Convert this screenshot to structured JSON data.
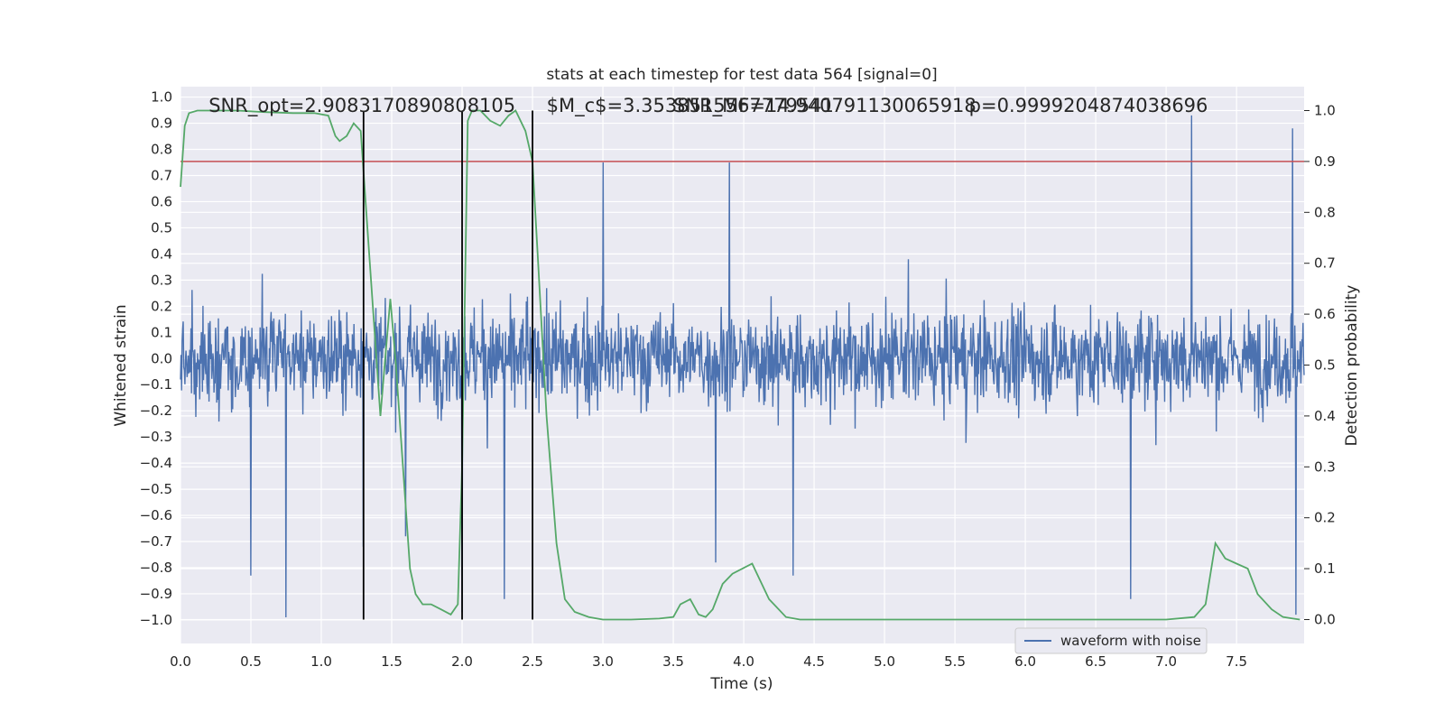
{
  "chart_data": {
    "type": "line",
    "title": "stats at each timestep for test data 564 [signal=0]",
    "xlabel": "Time (s)",
    "ylabel": "Whitened strain",
    "y2label": "Detection probability",
    "xlim": [
      0.0,
      7.98
    ],
    "ylim": [
      -1.09,
      1.04
    ],
    "y2lim": [
      -0.047,
      1.047
    ],
    "xticks": [
      "0.0",
      "0.5",
      "1.0",
      "1.5",
      "2.0",
      "2.5",
      "3.0",
      "3.5",
      "4.0",
      "4.5",
      "5.0",
      "5.5",
      "6.0",
      "6.5",
      "7.0",
      "7.5"
    ],
    "yticks": [
      "1.0",
      "0.9",
      "0.8",
      "0.7",
      "0.6",
      "0.5",
      "0.4",
      "0.3",
      "0.2",
      "0.1",
      "0.0",
      "−0.1",
      "−0.2",
      "−0.3",
      "−0.4",
      "−0.5",
      "−0.6",
      "−0.7",
      "−0.8",
      "−0.9",
      "−1.0"
    ],
    "y2ticks": [
      "1.0",
      "0.9",
      "0.8",
      "0.7",
      "0.6",
      "0.5",
      "0.4",
      "0.3",
      "0.2",
      "0.1",
      "0.0"
    ],
    "grid": true,
    "legend": {
      "placement": "lower-right",
      "entries": [
        "waveform with noise"
      ]
    },
    "annotations": [
      "SNR_opt=2.9083170890808105",
      "$M_c$=3.3538515567779541",
      "SNR_MF=14.940791130065918",
      "p=0.9999204874038696"
    ],
    "threshold": 0.9,
    "vlines": [
      1.3,
      2.0,
      2.5
    ],
    "series": [
      {
        "name": "waveform with noise",
        "waveform": {
          "n_samples": 2048,
          "typical_envelope": 0.33,
          "peaks": [
            {
              "x": 0.75,
              "y": -0.99
            },
            {
              "x": 0.5,
              "y": -0.83
            },
            {
              "x": 1.3,
              "y": 0.8
            },
            {
              "x": 1.3,
              "y": -0.72
            },
            {
              "x": 1.6,
              "y": -0.68
            },
            {
              "x": 2.0,
              "y": -0.97
            },
            {
              "x": 2.3,
              "y": -0.92
            },
            {
              "x": 3.0,
              "y": 0.75
            },
            {
              "x": 3.9,
              "y": 0.75
            },
            {
              "x": 3.8,
              "y": -0.78
            },
            {
              "x": 4.35,
              "y": -0.83
            },
            {
              "x": 6.75,
              "y": -0.92
            },
            {
              "x": 7.18,
              "y": 0.93
            },
            {
              "x": 7.9,
              "y": 0.88
            },
            {
              "x": 7.92,
              "y": -0.98
            }
          ]
        }
      },
      {
        "name": "",
        "axis": "right",
        "x": [
          0.0,
          0.03,
          0.06,
          0.12,
          0.2,
          0.4,
          0.6,
          0.8,
          0.95,
          1.05,
          1.1,
          1.13,
          1.18,
          1.23,
          1.28,
          1.32,
          1.37,
          1.42,
          1.45,
          1.49,
          1.53,
          1.58,
          1.63,
          1.67,
          1.72,
          1.78,
          1.85,
          1.92,
          1.97,
          2.0,
          2.04,
          2.07,
          2.13,
          2.2,
          2.27,
          2.33,
          2.38,
          2.45,
          2.5,
          2.54,
          2.6,
          2.67,
          2.73,
          2.8,
          2.9,
          3.0,
          3.2,
          3.4,
          3.5,
          3.55,
          3.62,
          3.68,
          3.73,
          3.78,
          3.85,
          3.92,
          4.06,
          4.18,
          4.3,
          4.4,
          4.6,
          4.8,
          5.0,
          5.5,
          6.0,
          6.5,
          7.0,
          7.2,
          7.28,
          7.35,
          7.42,
          7.5,
          7.58,
          7.65,
          7.75,
          7.83,
          7.9,
          7.95
        ],
        "values": [
          0.85,
          0.97,
          0.995,
          1.0,
          1.0,
          1.0,
          0.997,
          0.995,
          0.995,
          0.99,
          0.95,
          0.94,
          0.95,
          0.975,
          0.96,
          0.8,
          0.6,
          0.4,
          0.5,
          0.63,
          0.5,
          0.3,
          0.1,
          0.05,
          0.03,
          0.03,
          0.02,
          0.01,
          0.03,
          0.3,
          0.98,
          1.0,
          1.0,
          0.98,
          0.97,
          0.99,
          1.0,
          0.96,
          0.9,
          0.7,
          0.4,
          0.15,
          0.04,
          0.015,
          0.005,
          0.0,
          0.0,
          0.002,
          0.005,
          0.03,
          0.04,
          0.01,
          0.005,
          0.02,
          0.07,
          0.09,
          0.11,
          0.04,
          0.005,
          0.0,
          0.0,
          0.0,
          0.0,
          0.0,
          0.0,
          0.0,
          0.0,
          0.005,
          0.03,
          0.15,
          0.12,
          0.11,
          0.1,
          0.05,
          0.02,
          0.005,
          0.002,
          0.0
        ]
      }
    ]
  },
  "colors": {
    "background": "#eaeaf2",
    "grid": "#ffffff",
    "waveform": "#4c72b0",
    "probability": "#55a868",
    "threshold": "#c44e52",
    "vline": "#000000"
  }
}
